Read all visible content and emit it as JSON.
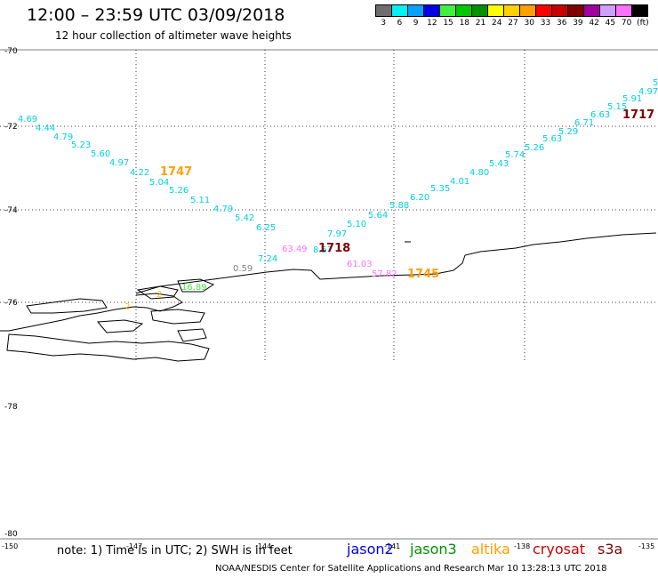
{
  "title": "12:00 – 23:59 UTC 03/09/2018",
  "subtitle": "12 hour collection of altimeter wave heights",
  "colorbar": {
    "colors": [
      "#6e6e6e",
      "#00f2f2",
      "#0aa0ff",
      "#0000e6",
      "#40f040",
      "#00c800",
      "#009000",
      "#ffff00",
      "#ffd000",
      "#ffa000",
      "#ff0000",
      "#c80000",
      "#800000",
      "#a000a0",
      "#d0a0ff",
      "#ff70ff",
      "#000000"
    ],
    "labels": [
      "3",
      "6",
      "9",
      "12",
      "15",
      "18",
      "21",
      "24",
      "27",
      "30",
      "33",
      "36",
      "39",
      "42",
      "45",
      "70",
      "(ft)"
    ]
  },
  "lat_labels": [
    "-70",
    "-72",
    "-74",
    "-76",
    "-78",
    "-80"
  ],
  "lon_labels": [
    "-150",
    "-147",
    "-144",
    "-141",
    "-138",
    "-135"
  ],
  "legend": [
    {
      "name": "jason2",
      "color": "#0000e6"
    },
    {
      "name": "jason3",
      "color": "#009000"
    },
    {
      "name": "altika",
      "color": "#ffa000"
    },
    {
      "name": "cryosat",
      "color": "#c80000"
    },
    {
      "name": "s3a",
      "color": "#800000"
    }
  ],
  "note": "note: 1) Time is in UTC; 2) SWH is in feet",
  "credit": "NOAA/NESDIS Center for Satellite Applications and Research    Mar 10 13:28:13 UTC 2018",
  "annotations": {
    "track_a": [
      "4.69",
      "4.44",
      "4.79",
      "5.23",
      "5.60",
      "4.97",
      "4.22",
      "5.04",
      "5.26",
      "5.11",
      "4.79",
      "5.42",
      "6.25",
      "7.24"
    ],
    "track_a_color": "#00d0e0",
    "track_b": [
      "8.57",
      "7.97",
      "5.10",
      "5.64",
      "5.88",
      "6.20",
      "5.35",
      "4.01",
      "4.80",
      "5.43",
      "5.74",
      "5.26",
      "5.63",
      "5.29",
      "6.71",
      "6.63",
      "5.15",
      "5.91",
      "4.97",
      "5"
    ],
    "track_b_color": "#00d0e0",
    "time_labels": [
      {
        "text": "1747",
        "color": "#ffa000"
      },
      {
        "text": "1718",
        "color": "#800000"
      },
      {
        "text": "1745",
        "color": "#ffa000"
      },
      {
        "text": "1717",
        "color": "#800000"
      }
    ],
    "pink_values": [
      "63.49",
      "61.03",
      "57.82"
    ],
    "pink_color": "#ff70ff",
    "gray_value": "0.59",
    "green_value": "16.89",
    "yellow_values": [
      "2",
      "2"
    ]
  }
}
